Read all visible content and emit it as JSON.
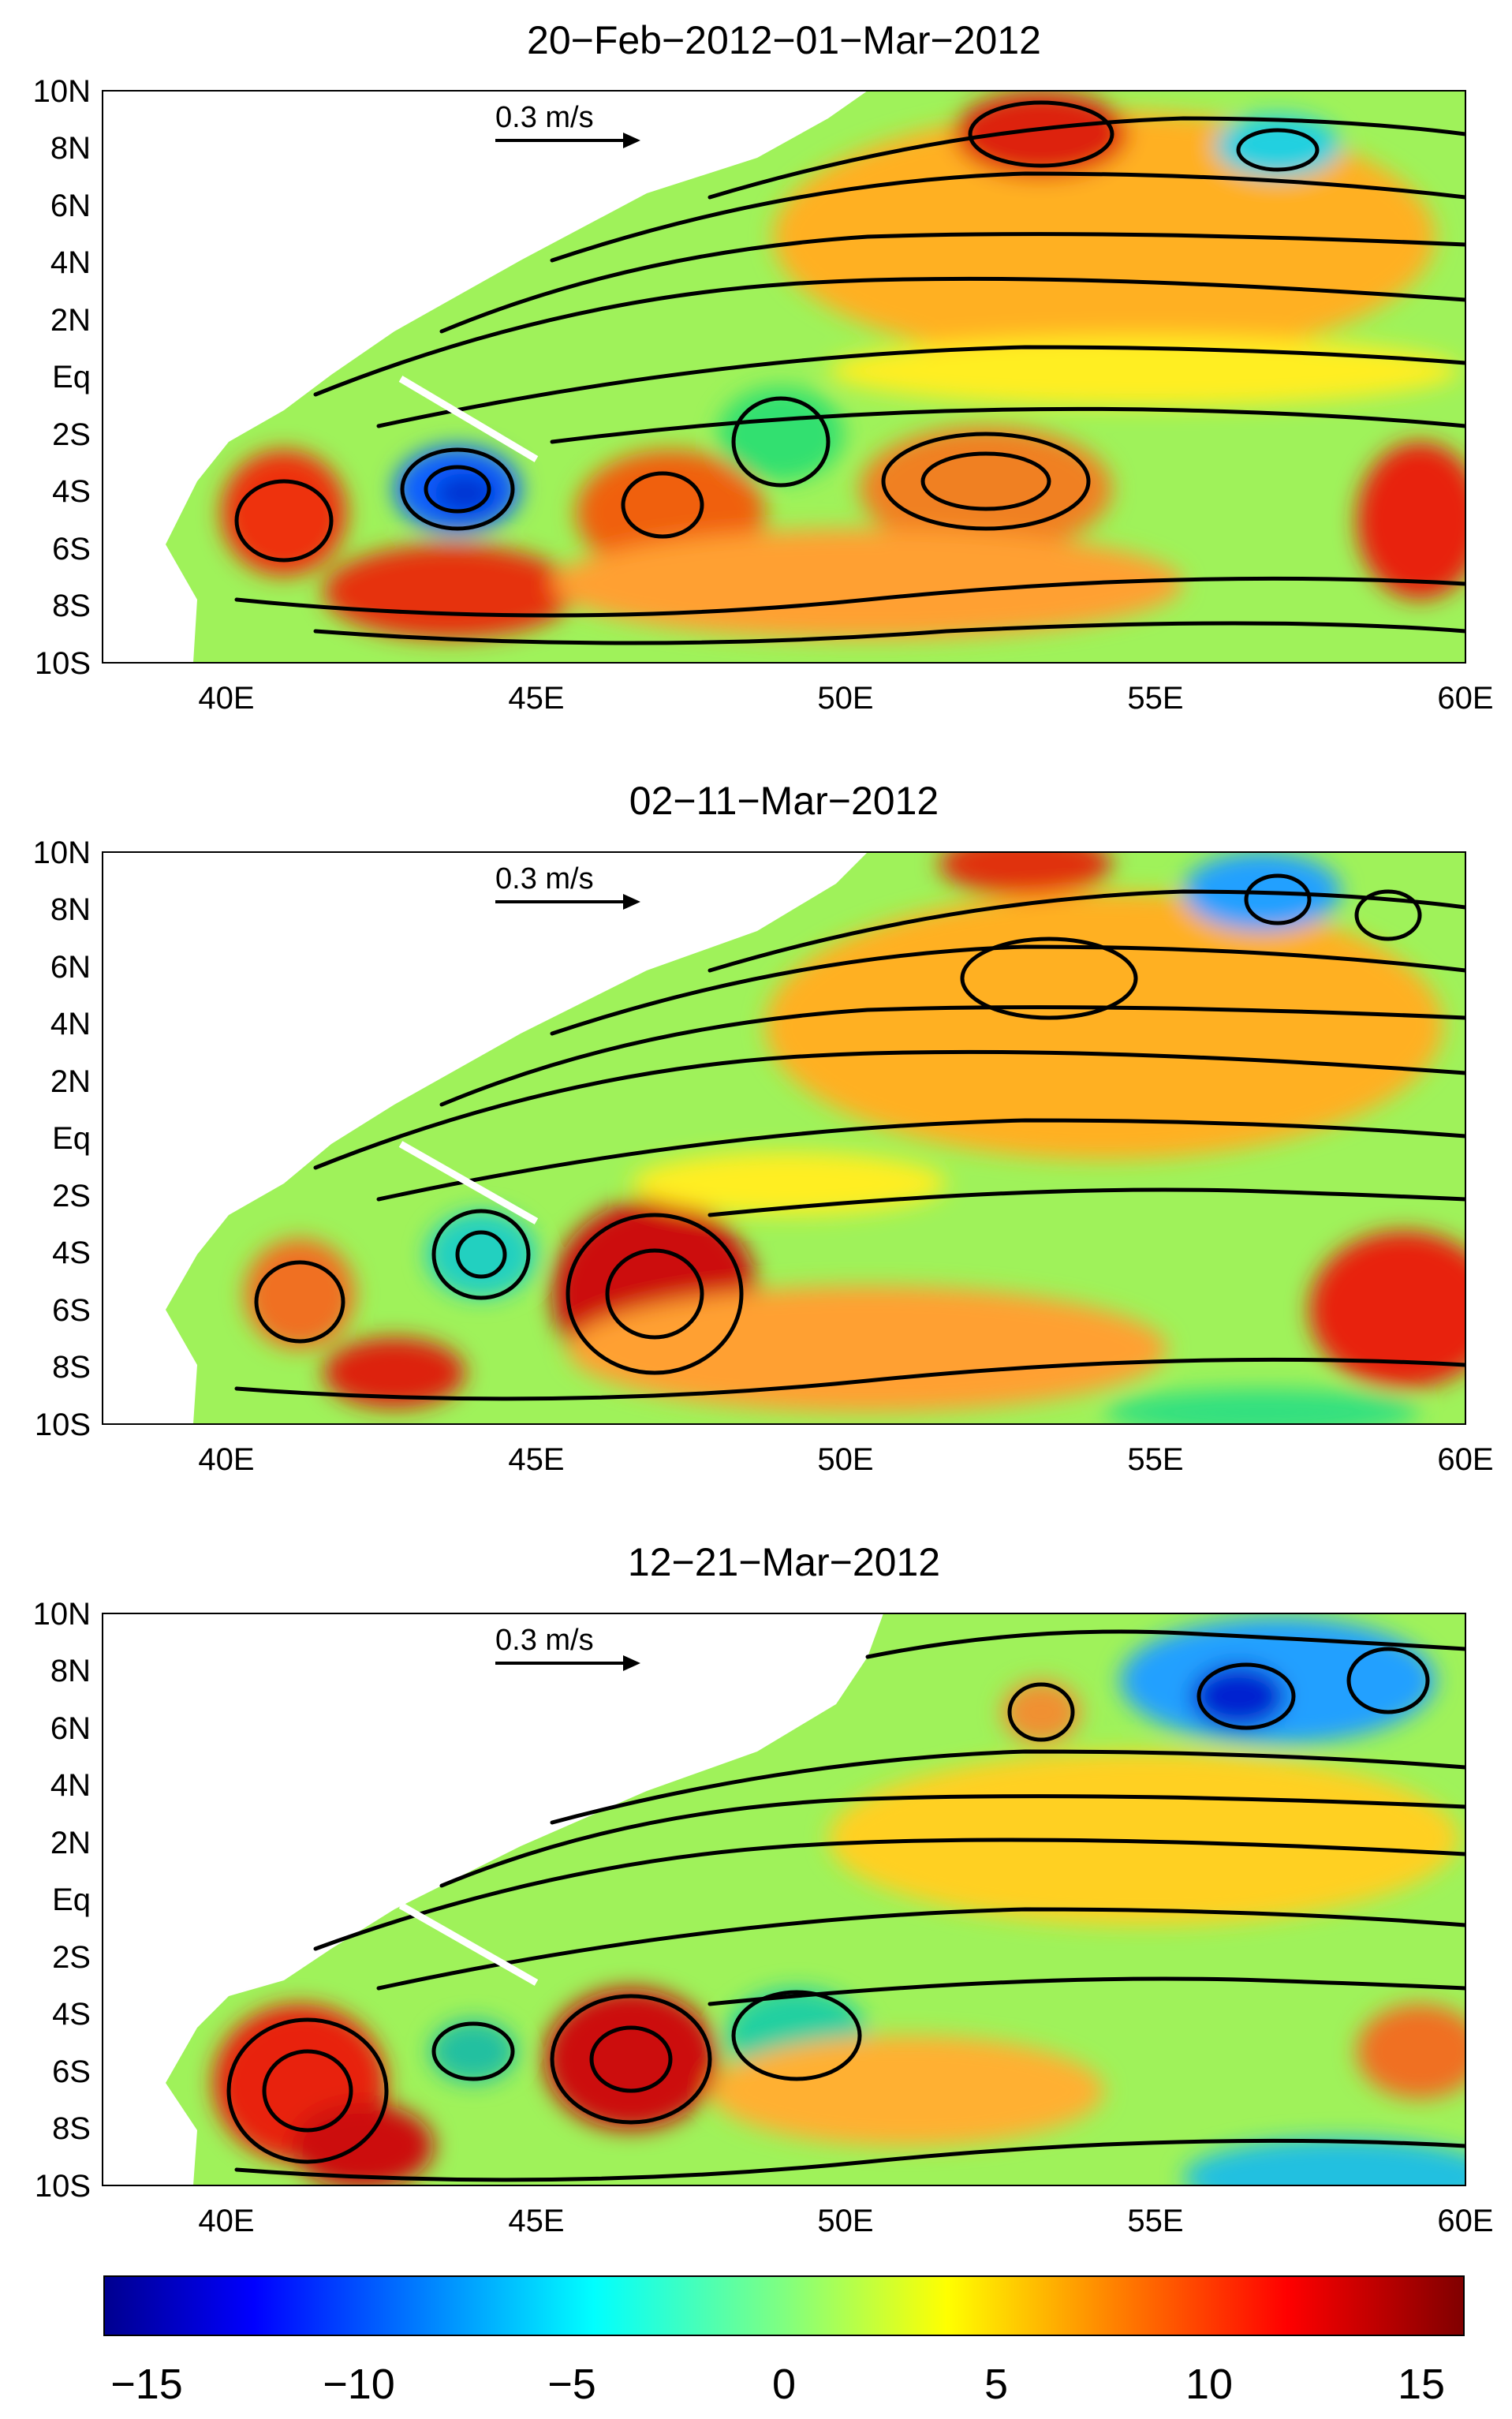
{
  "panels": [
    {
      "title": "20−Feb−2012−01−Mar−2012"
    },
    {
      "title": "02−11−Mar−2012"
    },
    {
      "title": "12−21−Mar−2012"
    }
  ],
  "axes": {
    "lat_ticks": [
      "10N",
      "8N",
      "6N",
      "4N",
      "2N",
      "Eq",
      "2S",
      "4S",
      "6S",
      "8S",
      "10S"
    ],
    "lon_ticks": [
      "40E",
      "45E",
      "50E",
      "55E",
      "60E"
    ],
    "lat_range": [
      -10,
      10
    ],
    "lon_range": [
      38,
      60
    ]
  },
  "reference_vector": {
    "label": "0.3 m/s",
    "speed": 0.3
  },
  "colorbar": {
    "ticks": [
      "−15",
      "−10",
      "−5",
      "0",
      "5",
      "10",
      "15"
    ],
    "range": [
      -16,
      16
    ],
    "colormap": [
      "#00008f",
      "#0000ff",
      "#00ffff",
      "#80ff80",
      "#ffff00",
      "#ff0000",
      "#800000"
    ]
  },
  "colors": {
    "land": "#ffffff",
    "arrows": "#000000",
    "section_line": "#ffffff"
  }
}
